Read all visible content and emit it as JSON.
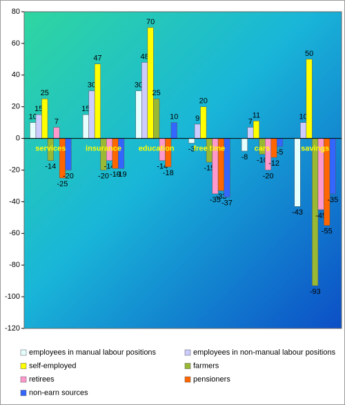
{
  "chart_data": {
    "type": "bar",
    "categories": [
      "services",
      "insurance",
      "education",
      "free time",
      "cars",
      "savings"
    ],
    "series": [
      {
        "name": "employees in manual labour positions",
        "color": "#e6ffff",
        "values": [
          10,
          15,
          30,
          -3,
          -8,
          -43
        ]
      },
      {
        "name": "employees in non-manual labour positions",
        "color": "#ccccff",
        "values": [
          15,
          30,
          48,
          9,
          7,
          10
        ]
      },
      {
        "name": "self-employed",
        "color": "#ffff00",
        "values": [
          25,
          47,
          70,
          20,
          11,
          50
        ]
      },
      {
        "name": "farmers",
        "color": "#99b833",
        "values": [
          -14,
          -20,
          25,
          -15,
          -10,
          -93
        ]
      },
      {
        "name": "retirees",
        "color": "#ff99cc",
        "values": [
          7,
          -14,
          -14,
          -35,
          -20,
          -45
        ]
      },
      {
        "name": "pensioners",
        "color": "#ff6600",
        "values": [
          -25,
          -19,
          -18,
          -33,
          -12,
          -55
        ]
      },
      {
        "name": "non-earn sources",
        "color": "#3366ff",
        "values": [
          -20,
          -19,
          10,
          -37,
          -5,
          -35
        ]
      }
    ],
    "ylim": [
      -120,
      80
    ],
    "yticks": [
      -120,
      -100,
      -80,
      -60,
      -40,
      -20,
      0,
      20,
      40,
      60,
      80
    ]
  }
}
